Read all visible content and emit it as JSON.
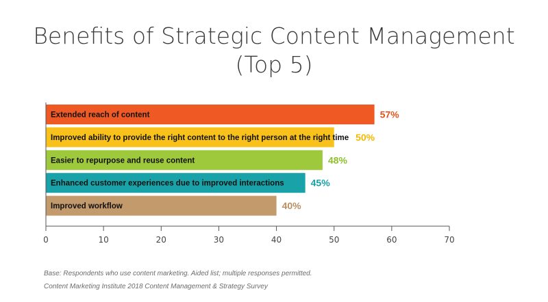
{
  "chart_data": {
    "type": "bar",
    "orientation": "horizontal",
    "title": "Benefits of Strategic Content Management",
    "subtitle": "(Top 5)",
    "categories": [
      "Extended reach of content",
      "Improved ability to provide the right content to the right person at the right time",
      "Easier to repurpose and reuse content",
      "Enhanced customer experiences due to improved interactions",
      "Improved workflow"
    ],
    "values": [
      57,
      50,
      48,
      45,
      40
    ],
    "value_labels": [
      "57%",
      "50%",
      "48%",
      "45%",
      "40%"
    ],
    "colors": [
      "#ef5a24",
      "#f9c21a",
      "#9ec93c",
      "#19a3a8",
      "#c29a6c"
    ],
    "label_colors": [
      "#e2531f",
      "#f5b800",
      "#8fbf2e",
      "#16a1a6",
      "#b88f63"
    ],
    "xlim": [
      0,
      70
    ],
    "xticks": [
      "0",
      "10",
      "20",
      "30",
      "40",
      "50",
      "60",
      "70"
    ],
    "xlabel": "",
    "ylabel": "",
    "grid": false,
    "legend": "none"
  },
  "footnotes": {
    "base": "Base: Respondents who use content marketing. Aided list; multiple responses permitted.",
    "source": "Content Marketing Institute 2018 Content Management & Strategy Survey"
  }
}
